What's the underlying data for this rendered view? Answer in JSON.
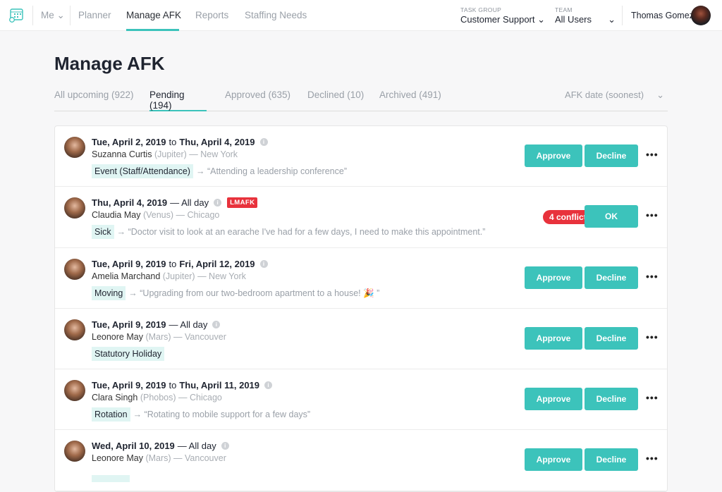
{
  "nav": {
    "me": "Me",
    "items": [
      "Planner",
      "Manage AFK",
      "Reports",
      "Staffing Needs"
    ],
    "active": 1
  },
  "filters": {
    "task_group_label": "TASK GROUP",
    "task_group_value": "Customer Support",
    "team_label": "TEAM",
    "team_value": "All Users"
  },
  "user": {
    "name": "Thomas Gomez"
  },
  "page": {
    "title": "Manage AFK"
  },
  "tabs": [
    "All upcoming (922)",
    "Pending (194)",
    "Approved (635)",
    "Declined (10)",
    "Archived (491)"
  ],
  "sort": {
    "label": "AFK date (soonest)"
  },
  "actions": {
    "approve": "Approve",
    "decline": "Decline",
    "ok": "OK",
    "more": "•••"
  },
  "colors": {
    "accent": "#3cc3bb",
    "danger": "#e8323c"
  },
  "requests": [
    {
      "start": "Tue, April 2, 2019",
      "connector": "to",
      "end": "Thu, April 4, 2019",
      "name": "Suzanna Curtis",
      "planet": "(Jupiter)",
      "city": "— New York",
      "tag": "Event (Staff/Attendance)",
      "reason": "→ “Attending a leadership conference”"
    },
    {
      "start": "Thu, April 4, 2019",
      "connector": "— All day",
      "end": "",
      "badge": "LMAFK",
      "name": "Claudia May",
      "planet": "(Venus)",
      "city": "— Chicago",
      "tag": "Sick",
      "reason": "→ “Doctor visit to look at an earache I've had for a few days, I need to make this appointment.”",
      "conflicts": "4 conflicts"
    },
    {
      "start": "Tue, April 9, 2019",
      "connector": "to",
      "end": "Fri, April 12, 2019",
      "name": "Amelia Marchand",
      "planet": "(Jupiter)",
      "city": "— New York",
      "tag": "Moving",
      "reason": "→ “Upgrading from our two-bedroom apartment to a house! 🎉 ”"
    },
    {
      "start": "Tue, April 9, 2019",
      "connector": "— All day",
      "end": "",
      "name": "Leonore May",
      "planet": "(Mars)",
      "city": "— Vancouver",
      "tag": "Statutory Holiday",
      "reason": ""
    },
    {
      "start": "Tue, April 9, 2019",
      "connector": "to",
      "end": "Thu, April 11, 2019",
      "name": "Clara Singh",
      "planet": "(Phobos)",
      "city": "— Chicago",
      "tag": "Rotation",
      "reason": "→ “Rotating to mobile support for a few days”"
    },
    {
      "start": "Wed, April 10, 2019",
      "connector": "— All day",
      "end": "",
      "name": "Leonore May",
      "planet": "(Mars)",
      "city": "— Vancouver",
      "tag": "",
      "reason": ""
    }
  ]
}
